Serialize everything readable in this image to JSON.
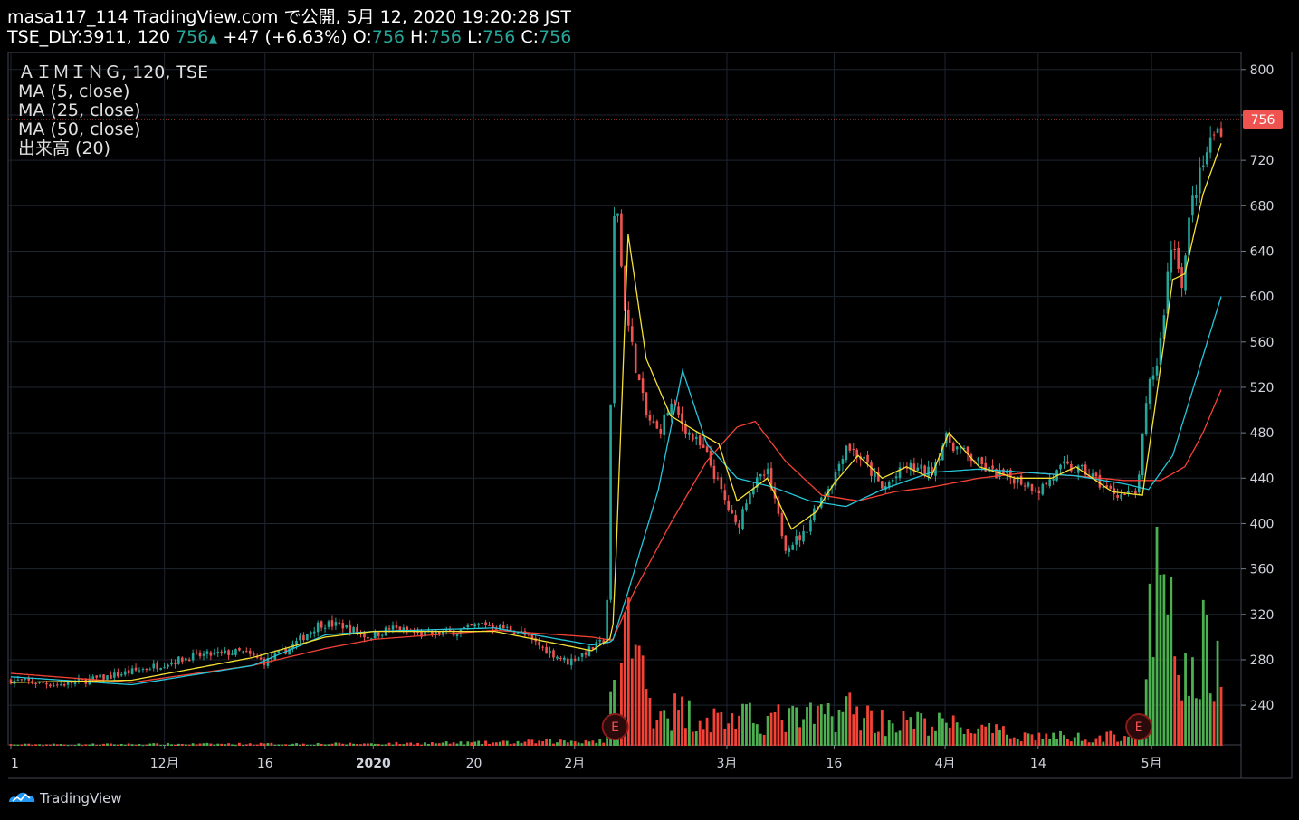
{
  "header": {
    "line1": "masa117_114 TradingView.com で公開, 5月 12, 2020 19:20:28 JST",
    "symbol": "TSE_DLY:3911, 120",
    "last": "756",
    "arrow": "▲",
    "change": "+47 (+6.63%)",
    "o_label": "O:",
    "o": "756",
    "h_label": "H:",
    "h": "756",
    "l_label": "L:",
    "l": "756",
    "c_label": "C:",
    "c": "756"
  },
  "legend": {
    "main": "ＡＩＭＩＮＧ, 120, TSE",
    "ma5": "MA (5, close)",
    "ma25": "MA (25, close)",
    "ma50": "MA (50, close)",
    "volume": "出来高 (20)"
  },
  "brand": "TradingView",
  "colors": {
    "up": "#26a69a",
    "down": "#ef5350",
    "ma5": "#f5e135",
    "ma25": "#26c6da",
    "ma50": "#f44336",
    "vol_up": "#4caf50",
    "vol_down": "#f44336",
    "grid": "#1e2530",
    "price_line": "#ef5350"
  },
  "chart_data": {
    "type": "candlestick",
    "y_range": [
      205,
      815
    ],
    "y_ticks": [
      240,
      280,
      320,
      360,
      400,
      440,
      480,
      520,
      560,
      600,
      640,
      680,
      720,
      760,
      800
    ],
    "last_price": 756,
    "last_price_label": "756",
    "x_labels": [
      {
        "label": "1",
        "t": 0.0,
        "bold": false
      },
      {
        "label": "12月",
        "t": 0.1269,
        "bold": false
      },
      {
        "label": "16",
        "t": 0.21,
        "bold": false
      },
      {
        "label": "2020",
        "t": 0.2994,
        "bold": true
      },
      {
        "label": "20",
        "t": 0.3826,
        "bold": false
      },
      {
        "label": "2月",
        "t": 0.4658,
        "bold": false
      },
      {
        "label": "3月",
        "t": 0.5916,
        "bold": false
      },
      {
        "label": "16",
        "t": 0.6802,
        "bold": false
      },
      {
        "label": "4月",
        "t": 0.7719,
        "bold": false
      },
      {
        "label": "14",
        "t": 0.8488,
        "bold": false
      },
      {
        "label": "5月",
        "t": 0.9425,
        "bold": false
      }
    ],
    "earnings_markers": [
      {
        "label": "E",
        "t": 0.4993
      },
      {
        "label": "E",
        "t": 0.932
      }
    ],
    "price_anchors": [
      [
        0.0,
        262
      ],
      [
        0.04,
        258
      ],
      [
        0.08,
        265
      ],
      [
        0.11,
        272
      ],
      [
        0.15,
        283
      ],
      [
        0.19,
        287
      ],
      [
        0.21,
        278
      ],
      [
        0.23,
        290
      ],
      [
        0.255,
        312
      ],
      [
        0.275,
        310
      ],
      [
        0.295,
        300
      ],
      [
        0.315,
        308
      ],
      [
        0.34,
        302
      ],
      [
        0.37,
        305
      ],
      [
        0.39,
        312
      ],
      [
        0.42,
        305
      ],
      [
        0.44,
        290
      ],
      [
        0.46,
        278
      ],
      [
        0.48,
        290
      ],
      [
        0.492,
        298
      ],
      [
        0.4993,
        712
      ],
      [
        0.506,
        600
      ],
      [
        0.515,
        545
      ],
      [
        0.525,
        495
      ],
      [
        0.535,
        480
      ],
      [
        0.545,
        505
      ],
      [
        0.56,
        480
      ],
      [
        0.575,
        460
      ],
      [
        0.59,
        420
      ],
      [
        0.6,
        395
      ],
      [
        0.61,
        430
      ],
      [
        0.625,
        445
      ],
      [
        0.64,
        380
      ],
      [
        0.655,
        390
      ],
      [
        0.665,
        415
      ],
      [
        0.68,
        440
      ],
      [
        0.69,
        470
      ],
      [
        0.705,
        455
      ],
      [
        0.72,
        430
      ],
      [
        0.74,
        450
      ],
      [
        0.76,
        445
      ],
      [
        0.772,
        475
      ],
      [
        0.79,
        460
      ],
      [
        0.81,
        445
      ],
      [
        0.83,
        440
      ],
      [
        0.85,
        430
      ],
      [
        0.87,
        450
      ],
      [
        0.89,
        445
      ],
      [
        0.905,
        430
      ],
      [
        0.92,
        425
      ],
      [
        0.93,
        425
      ],
      [
        0.94,
        520
      ],
      [
        0.948,
        545
      ],
      [
        0.953,
        590
      ],
      [
        0.958,
        645
      ],
      [
        0.963,
        640
      ],
      [
        0.968,
        610
      ],
      [
        0.975,
        680
      ],
      [
        0.985,
        715
      ],
      [
        0.992,
        740
      ],
      [
        1.0,
        750
      ]
    ],
    "ma_anchors": {
      "ma5": [
        [
          0.0,
          260
        ],
        [
          0.1,
          262
        ],
        [
          0.2,
          282
        ],
        [
          0.26,
          300
        ],
        [
          0.3,
          305
        ],
        [
          0.4,
          305
        ],
        [
          0.48,
          288
        ],
        [
          0.497,
          300
        ],
        [
          0.5,
          370
        ],
        [
          0.51,
          655
        ],
        [
          0.525,
          545
        ],
        [
          0.545,
          495
        ],
        [
          0.565,
          482
        ],
        [
          0.585,
          470
        ],
        [
          0.6,
          420
        ],
        [
          0.625,
          440
        ],
        [
          0.645,
          395
        ],
        [
          0.665,
          410
        ],
        [
          0.68,
          435
        ],
        [
          0.7,
          460
        ],
        [
          0.72,
          440
        ],
        [
          0.74,
          450
        ],
        [
          0.76,
          440
        ],
        [
          0.775,
          480
        ],
        [
          0.8,
          450
        ],
        [
          0.83,
          440
        ],
        [
          0.86,
          440
        ],
        [
          0.88,
          450
        ],
        [
          0.91,
          428
        ],
        [
          0.935,
          425
        ],
        [
          0.945,
          500
        ],
        [
          0.96,
          615
        ],
        [
          0.97,
          620
        ],
        [
          0.985,
          690
        ],
        [
          1.0,
          735
        ]
      ],
      "ma25": [
        [
          0.0,
          265
        ],
        [
          0.1,
          258
        ],
        [
          0.2,
          275
        ],
        [
          0.26,
          302
        ],
        [
          0.3,
          305
        ],
        [
          0.4,
          308
        ],
        [
          0.48,
          293
        ],
        [
          0.497,
          296
        ],
        [
          0.51,
          340
        ],
        [
          0.535,
          430
        ],
        [
          0.555,
          535
        ],
        [
          0.575,
          470
        ],
        [
          0.6,
          440
        ],
        [
          0.63,
          432
        ],
        [
          0.66,
          420
        ],
        [
          0.69,
          415
        ],
        [
          0.72,
          430
        ],
        [
          0.76,
          445
        ],
        [
          0.8,
          448
        ],
        [
          0.84,
          445
        ],
        [
          0.88,
          442
        ],
        [
          0.92,
          435
        ],
        [
          0.94,
          430
        ],
        [
          0.96,
          460
        ],
        [
          0.98,
          530
        ],
        [
          1.0,
          600
        ]
      ],
      "ma50": [
        [
          0.0,
          268
        ],
        [
          0.1,
          260
        ],
        [
          0.2,
          275
        ],
        [
          0.26,
          290
        ],
        [
          0.3,
          298
        ],
        [
          0.4,
          306
        ],
        [
          0.48,
          300
        ],
        [
          0.497,
          297
        ],
        [
          0.515,
          340
        ],
        [
          0.545,
          400
        ],
        [
          0.575,
          455
        ],
        [
          0.6,
          485
        ],
        [
          0.615,
          490
        ],
        [
          0.64,
          455
        ],
        [
          0.67,
          425
        ],
        [
          0.7,
          420
        ],
        [
          0.73,
          428
        ],
        [
          0.76,
          432
        ],
        [
          0.8,
          440
        ],
        [
          0.84,
          445
        ],
        [
          0.88,
          442
        ],
        [
          0.92,
          438
        ],
        [
          0.95,
          438
        ],
        [
          0.97,
          450
        ],
        [
          0.985,
          480
        ],
        [
          1.0,
          518
        ]
      ]
    },
    "volume_anchors": [
      [
        0.0,
        0.005
      ],
      [
        0.3,
        0.008
      ],
      [
        0.4,
        0.012
      ],
      [
        0.49,
        0.02
      ],
      [
        0.4993,
        0.2
      ],
      [
        0.51,
        0.43
      ],
      [
        0.53,
        0.15
      ],
      [
        0.58,
        0.1
      ],
      [
        0.62,
        0.1
      ],
      [
        0.66,
        0.1
      ],
      [
        0.69,
        0.14
      ],
      [
        0.72,
        0.09
      ],
      [
        0.77,
        0.08
      ],
      [
        0.83,
        0.04
      ],
      [
        0.9,
        0.03
      ],
      [
        0.935,
        0.05
      ],
      [
        0.945,
        0.6
      ],
      [
        0.96,
        0.4
      ],
      [
        0.975,
        0.2
      ],
      [
        0.99,
        0.44
      ],
      [
        1.0,
        0.2
      ]
    ]
  }
}
